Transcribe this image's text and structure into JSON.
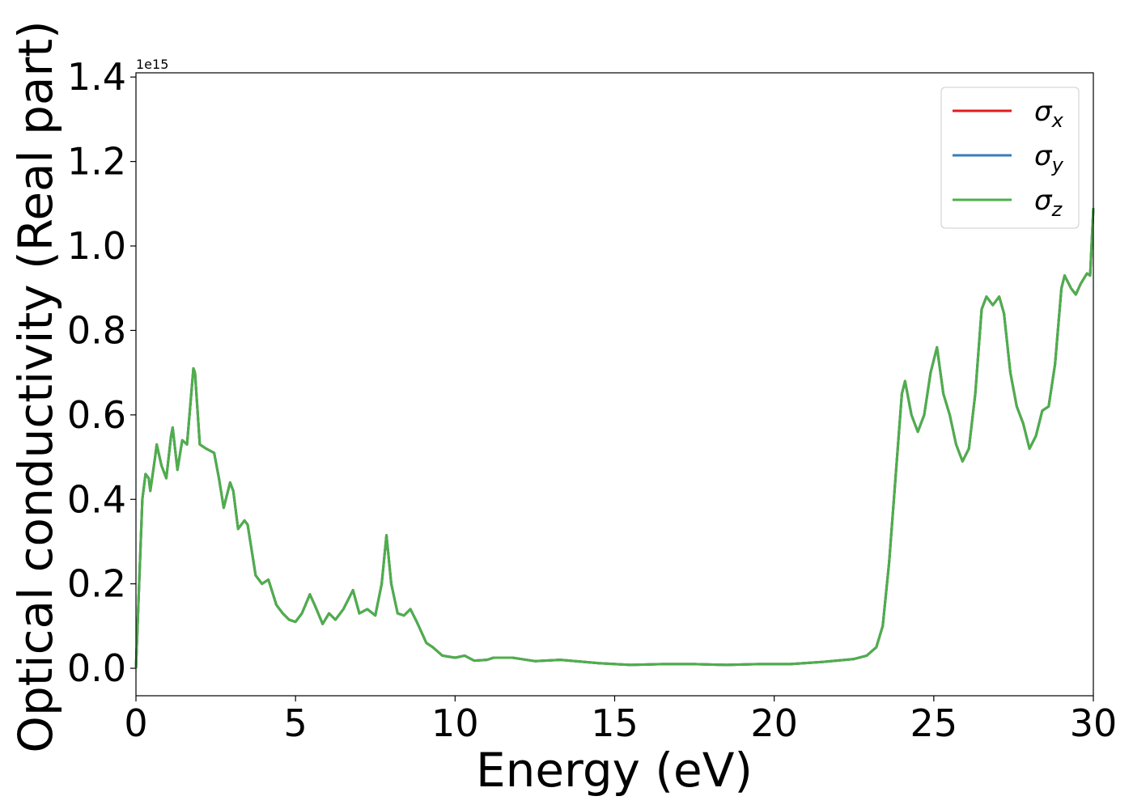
{
  "chart_data": {
    "type": "line",
    "xlabel": "Energy (eV)",
    "ylabel": "Optical conductivity (Real part)",
    "y_offset_label": "1e15",
    "legend": "upper right",
    "xlim": [
      0,
      30
    ],
    "xticks": [
      0,
      5,
      10,
      15,
      20,
      25,
      30
    ],
    "ylim": [
      -0.065,
      1.41
    ],
    "yticks": [
      {
        "value": 0,
        "label": "0.0"
      },
      {
        "value": 0.2,
        "label": "0.2"
      },
      {
        "value": 0.4,
        "label": "0.4"
      },
      {
        "value": 0.6,
        "label": "0.6"
      },
      {
        "value": 0.8,
        "label": "0.8"
      },
      {
        "value": 1.0,
        "label": "1.0"
      },
      {
        "value": 1.2,
        "label": "1.2"
      },
      {
        "value": 1.4,
        "label": "1.4"
      }
    ],
    "x": [
      0,
      0.1,
      0.2,
      0.3,
      0.4,
      0.45,
      0.6,
      0.65,
      0.8,
      0.95,
      1.1,
      1.15,
      1.3,
      1.45,
      1.6,
      1.8,
      1.85,
      2.0,
      2.2,
      2.45,
      2.6,
      2.75,
      2.95,
      3.05,
      3.2,
      3.4,
      3.5,
      3.75,
      3.95,
      4.15,
      4.4,
      4.6,
      4.8,
      5.0,
      5.2,
      5.45,
      5.6,
      5.85,
      6.05,
      6.25,
      6.5,
      6.8,
      7.0,
      7.25,
      7.5,
      7.7,
      7.85,
      8.0,
      8.2,
      8.4,
      8.6,
      8.8,
      9.1,
      9.3,
      9.6,
      10.0,
      10.3,
      10.6,
      11.0,
      11.2,
      11.8,
      12.5,
      13.3,
      14.5,
      15.5,
      16.5,
      17.5,
      18.5,
      19.5,
      20.5,
      21.5,
      22.5,
      22.9,
      23.2,
      23.4,
      23.6,
      23.8,
      24.0,
      24.1,
      24.3,
      24.5,
      24.7,
      24.9,
      25.1,
      25.3,
      25.5,
      25.7,
      25.9,
      26.1,
      26.3,
      26.5,
      26.65,
      26.85,
      27.05,
      27.2,
      27.4,
      27.6,
      27.8,
      28.0,
      28.2,
      28.4,
      28.6,
      28.8,
      29.0,
      29.1,
      29.3,
      29.45,
      29.6,
      29.8,
      29.9,
      30
    ],
    "series": [
      {
        "name": "σx",
        "color": "#e41a1c",
        "values": [
          0.0,
          0.2,
          0.4,
          0.46,
          0.45,
          0.42,
          0.5,
          0.53,
          0.48,
          0.45,
          0.55,
          0.57,
          0.47,
          0.54,
          0.53,
          0.71,
          0.7,
          0.53,
          0.52,
          0.51,
          0.45,
          0.38,
          0.44,
          0.42,
          0.33,
          0.35,
          0.34,
          0.22,
          0.2,
          0.21,
          0.15,
          0.13,
          0.115,
          0.11,
          0.13,
          0.175,
          0.15,
          0.105,
          0.13,
          0.115,
          0.14,
          0.185,
          0.13,
          0.14,
          0.125,
          0.2,
          0.315,
          0.2,
          0.13,
          0.125,
          0.14,
          0.11,
          0.06,
          0.05,
          0.03,
          0.025,
          0.03,
          0.018,
          0.02,
          0.025,
          0.025,
          0.017,
          0.02,
          0.012,
          0.008,
          0.01,
          0.01,
          0.008,
          0.01,
          0.01,
          0.015,
          0.022,
          0.03,
          0.05,
          0.1,
          0.25,
          0.45,
          0.65,
          0.68,
          0.6,
          0.56,
          0.6,
          0.7,
          0.76,
          0.65,
          0.6,
          0.53,
          0.49,
          0.52,
          0.65,
          0.85,
          0.88,
          0.86,
          0.88,
          0.84,
          0.7,
          0.62,
          0.58,
          0.52,
          0.55,
          0.61,
          0.62,
          0.72,
          0.9,
          0.93,
          0.9,
          0.885,
          0.91,
          0.935,
          0.93,
          1.09
        ]
      },
      {
        "name": "σy",
        "color": "#377eb8",
        "values": [
          0.0,
          0.2,
          0.4,
          0.46,
          0.45,
          0.42,
          0.5,
          0.53,
          0.48,
          0.45,
          0.55,
          0.57,
          0.47,
          0.54,
          0.53,
          0.71,
          0.7,
          0.53,
          0.52,
          0.51,
          0.45,
          0.38,
          0.44,
          0.42,
          0.33,
          0.35,
          0.34,
          0.22,
          0.2,
          0.21,
          0.15,
          0.13,
          0.115,
          0.11,
          0.13,
          0.175,
          0.15,
          0.105,
          0.13,
          0.115,
          0.14,
          0.185,
          0.13,
          0.14,
          0.125,
          0.2,
          0.315,
          0.2,
          0.13,
          0.125,
          0.14,
          0.11,
          0.06,
          0.05,
          0.03,
          0.025,
          0.03,
          0.018,
          0.02,
          0.025,
          0.025,
          0.017,
          0.02,
          0.012,
          0.008,
          0.01,
          0.01,
          0.008,
          0.01,
          0.01,
          0.015,
          0.022,
          0.03,
          0.05,
          0.1,
          0.25,
          0.45,
          0.65,
          0.68,
          0.6,
          0.56,
          0.6,
          0.7,
          0.76,
          0.65,
          0.6,
          0.53,
          0.49,
          0.52,
          0.65,
          0.85,
          0.88,
          0.86,
          0.88,
          0.84,
          0.7,
          0.62,
          0.58,
          0.52,
          0.55,
          0.61,
          0.62,
          0.72,
          0.9,
          0.93,
          0.9,
          0.885,
          0.91,
          0.935,
          0.93,
          1.09
        ]
      },
      {
        "name": "σz",
        "color": "#4daf4a",
        "values": [
          0.0,
          0.2,
          0.4,
          0.46,
          0.45,
          0.42,
          0.5,
          0.53,
          0.48,
          0.45,
          0.55,
          0.57,
          0.47,
          0.54,
          0.53,
          0.71,
          0.7,
          0.53,
          0.52,
          0.51,
          0.45,
          0.38,
          0.44,
          0.42,
          0.33,
          0.35,
          0.34,
          0.22,
          0.2,
          0.21,
          0.15,
          0.13,
          0.115,
          0.11,
          0.13,
          0.175,
          0.15,
          0.105,
          0.13,
          0.115,
          0.14,
          0.185,
          0.13,
          0.14,
          0.125,
          0.2,
          0.315,
          0.2,
          0.13,
          0.125,
          0.14,
          0.11,
          0.06,
          0.05,
          0.03,
          0.025,
          0.03,
          0.018,
          0.02,
          0.025,
          0.025,
          0.017,
          0.02,
          0.012,
          0.008,
          0.01,
          0.01,
          0.008,
          0.01,
          0.01,
          0.015,
          0.022,
          0.03,
          0.05,
          0.1,
          0.25,
          0.45,
          0.65,
          0.68,
          0.6,
          0.56,
          0.6,
          0.7,
          0.76,
          0.65,
          0.6,
          0.53,
          0.49,
          0.52,
          0.65,
          0.85,
          0.88,
          0.86,
          0.88,
          0.84,
          0.7,
          0.62,
          0.58,
          0.52,
          0.55,
          0.61,
          0.62,
          0.72,
          0.9,
          0.93,
          0.9,
          0.885,
          0.91,
          0.935,
          0.93,
          1.09
        ]
      }
    ]
  }
}
